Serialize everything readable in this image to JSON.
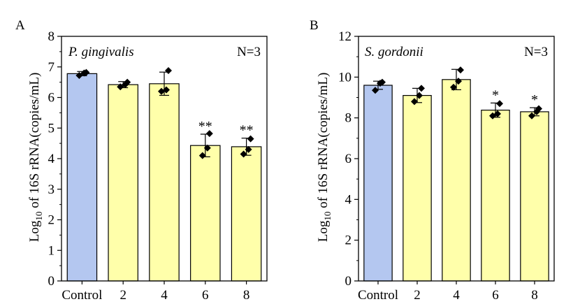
{
  "chart_data": [
    {
      "type": "bar",
      "panel_label": "A",
      "title": "P. gingivalis",
      "annotation": "N=3",
      "ylabel_prefix": "Log",
      "ylabel_sub": "10",
      "ylabel_suffix": " of 16S rRNA(copies/mL)",
      "categories": [
        "Control",
        "2",
        "4",
        "6",
        "8"
      ],
      "values": [
        6.78,
        6.42,
        6.45,
        4.43,
        4.39
      ],
      "error": [
        0.07,
        0.1,
        0.38,
        0.37,
        0.28
      ],
      "points": [
        [
          6.72,
          6.8,
          6.82
        ],
        [
          6.35,
          6.42,
          6.5
        ],
        [
          6.2,
          6.25,
          6.88
        ],
        [
          4.1,
          4.35,
          4.82
        ],
        [
          4.15,
          4.3,
          4.65
        ]
      ],
      "significance": [
        "",
        "",
        "",
        "**",
        "**"
      ],
      "ylim": [
        0,
        8
      ],
      "yticks": [
        0,
        1,
        2,
        3,
        4,
        5,
        6,
        7,
        8
      ],
      "bar_colors": [
        "#B4C7F0",
        "#FFFFAA",
        "#FFFFAA",
        "#FFFFAA",
        "#FFFFAA"
      ]
    },
    {
      "type": "bar",
      "panel_label": "B",
      "title": "S. gordonii",
      "annotation": "N=3",
      "ylabel_prefix": "Log",
      "ylabel_sub": "10",
      "ylabel_suffix": " of 16S rRNA(copies/mL)",
      "categories": [
        "Control",
        "2",
        "4",
        "6",
        "8"
      ],
      "values": [
        9.6,
        9.1,
        9.88,
        8.38,
        8.3
      ],
      "error": [
        0.2,
        0.35,
        0.5,
        0.35,
        0.2
      ],
      "points": [
        [
          9.35,
          9.7,
          9.75
        ],
        [
          8.8,
          9.1,
          9.45
        ],
        [
          9.5,
          9.8,
          10.35
        ],
        [
          8.1,
          8.2,
          8.7
        ],
        [
          8.1,
          8.3,
          8.45
        ]
      ],
      "significance": [
        "",
        "",
        "",
        "*",
        "*"
      ],
      "ylim": [
        0,
        12
      ],
      "yticks": [
        0,
        2,
        4,
        6,
        8,
        10,
        12
      ],
      "bar_colors": [
        "#B4C7F0",
        "#FFFFAA",
        "#FFFFAA",
        "#FFFFAA",
        "#FFFFAA"
      ]
    }
  ]
}
